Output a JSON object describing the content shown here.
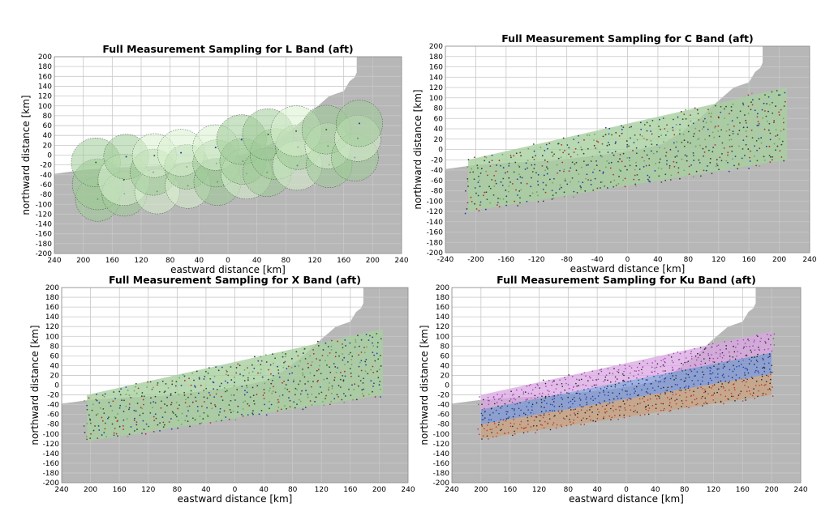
{
  "chart_data": [
    {
      "type": "scatter",
      "title": "Full Measurement Sampling for L Band (aft)",
      "xlabel": "eastward distance [km]",
      "ylabel": "northward distance [km]",
      "xlim": [
        -240,
        240
      ],
      "ylim": [
        -200,
        200
      ],
      "xticks": [
        -240,
        -200,
        -160,
        -120,
        -80,
        -40,
        0,
        40,
        80,
        120,
        160,
        200,
        240
      ],
      "xtick_labels": [
        "240",
        "200",
        "160",
        "120",
        "80",
        "40",
        "0",
        "40",
        "80",
        "120",
        "160",
        "200",
        "240"
      ],
      "yticks": [
        200,
        180,
        160,
        140,
        120,
        100,
        80,
        60,
        40,
        20,
        0,
        -20,
        -40,
        -60,
        -80,
        -100,
        -120,
        -140,
        -160,
        -180,
        -200
      ],
      "ytick_labels": [
        "200",
        "180",
        "160",
        "140",
        "120",
        "100",
        "80",
        "60",
        "40",
        "20",
        "0",
        "-20",
        "-40",
        "-60",
        "-80",
        "-100",
        "-120",
        "-140",
        "-160",
        "-180",
        "-200"
      ],
      "grid": true,
      "swath": {
        "x": [
          -200,
          200
        ],
        "y_left": [
          -110,
          -15
        ],
        "y_right": [
          -15,
          110
        ]
      },
      "render": {
        "style": "footprints",
        "step": 40,
        "radius": 30
      },
      "colors": {
        "sea": "#ffffff",
        "land": "#b7b7b7",
        "swath": "#9fcb98"
      }
    },
    {
      "type": "scatter",
      "title": "Full Measurement Sampling for C Band (aft)",
      "xlabel": "eastward distance [km]",
      "ylabel": "northward distance [km]",
      "xlim": [
        -240,
        240
      ],
      "ylim": [
        -200,
        200
      ],
      "xticks": [
        -240,
        -200,
        -160,
        -120,
        -80,
        -40,
        0,
        40,
        80,
        120,
        160,
        200,
        240
      ],
      "xtick_labels": [
        "-240",
        "-200",
        "-160",
        "-120",
        "-80",
        "-40",
        "0",
        "40",
        "80",
        "120",
        "160",
        "200",
        "240"
      ],
      "yticks": [
        200,
        180,
        160,
        140,
        120,
        100,
        80,
        60,
        40,
        20,
        0,
        -20,
        -40,
        -60,
        -80,
        -100,
        -120,
        -140,
        -160,
        -180,
        -200
      ],
      "ytick_labels": [
        "200",
        "180",
        "160",
        "140",
        "120",
        "100",
        "80",
        "60",
        "40",
        "20",
        "0",
        "-20",
        "-40",
        "-60",
        "-80",
        "-100",
        "-120",
        "-140",
        "-160",
        "-180",
        "-200"
      ],
      "grid": true,
      "swath": {
        "x": [
          -210,
          210
        ],
        "y_left": [
          -120,
          -20
        ],
        "y_right": [
          -20,
          120
        ]
      },
      "render": {
        "style": "dots",
        "step": 9
      },
      "colors": {
        "sea": "#ffffff",
        "land": "#b7b7b7",
        "swath": "#a8cf9f"
      }
    },
    {
      "type": "scatter",
      "title": "Full Measurement Sampling for X Band (aft)",
      "xlabel": "eastward distance [km]",
      "ylabel": "northward distance [km]",
      "xlim": [
        -240,
        240
      ],
      "ylim": [
        -200,
        200
      ],
      "xticks": [
        -240,
        -200,
        -160,
        -120,
        -80,
        -40,
        0,
        40,
        80,
        120,
        160,
        200,
        240
      ],
      "xtick_labels": [
        "240",
        "200",
        "160",
        "120",
        "80",
        "40",
        "0",
        "40",
        "80",
        "120",
        "160",
        "200",
        "240"
      ],
      "yticks": [
        200,
        180,
        160,
        140,
        120,
        100,
        80,
        60,
        40,
        20,
        0,
        -20,
        -40,
        -60,
        -80,
        -100,
        -120,
        -140,
        -160,
        -180,
        -200
      ],
      "ytick_labels": [
        "200",
        "180",
        "160",
        "140",
        "120",
        "100",
        "80",
        "60",
        "40",
        "20",
        "0",
        "-20",
        "-40",
        "-60",
        "-80",
        "-100",
        "-120",
        "-140",
        "-160",
        "-180",
        "-200"
      ],
      "grid": true,
      "swath": {
        "x": [
          -205,
          205
        ],
        "y_left": [
          -115,
          -20
        ],
        "y_right": [
          -20,
          115
        ]
      },
      "render": {
        "style": "dots",
        "step": 9
      },
      "colors": {
        "sea": "#ffffff",
        "land": "#b7b7b7",
        "swath": "#a8cf9f"
      }
    },
    {
      "type": "scatter",
      "title": "Full Measurement Sampling for Ku Band (aft)",
      "xlabel": "eastward distance [km]",
      "ylabel": "northward distance [km]",
      "xlim": [
        -240,
        240
      ],
      "ylim": [
        -200,
        200
      ],
      "xticks": [
        -240,
        -200,
        -160,
        -120,
        -80,
        -40,
        0,
        40,
        80,
        120,
        160,
        200,
        240
      ],
      "xtick_labels": [
        "240",
        "200",
        "160",
        "120",
        "80",
        "40",
        "0",
        "40",
        "80",
        "120",
        "160",
        "200",
        "240"
      ],
      "yticks": [
        200,
        180,
        160,
        140,
        120,
        100,
        80,
        60,
        40,
        20,
        0,
        -20,
        -40,
        -60,
        -80,
        -100,
        -120,
        -140,
        -160,
        -180,
        -200
      ],
      "ytick_labels": [
        "200",
        "180",
        "160",
        "140",
        "120",
        "100",
        "80",
        "60",
        "40",
        "20",
        "0",
        "-20",
        "-40",
        "-60",
        "-80",
        "-100",
        "-120",
        "-140",
        "-160",
        "-180",
        "-200"
      ],
      "grid": true,
      "swath": {
        "x": [
          -200,
          200
        ],
        "y_left": [
          -110,
          -20
        ],
        "y_right": [
          -20,
          110
        ]
      },
      "render": {
        "style": "bands",
        "step": 8
      },
      "colors": {
        "sea": "#ffffff",
        "land": "#b7b7b7",
        "band_top": "#d9a6e3",
        "band_mid": "#7d97d6",
        "band_bottom": "#c9a27f"
      }
    }
  ]
}
